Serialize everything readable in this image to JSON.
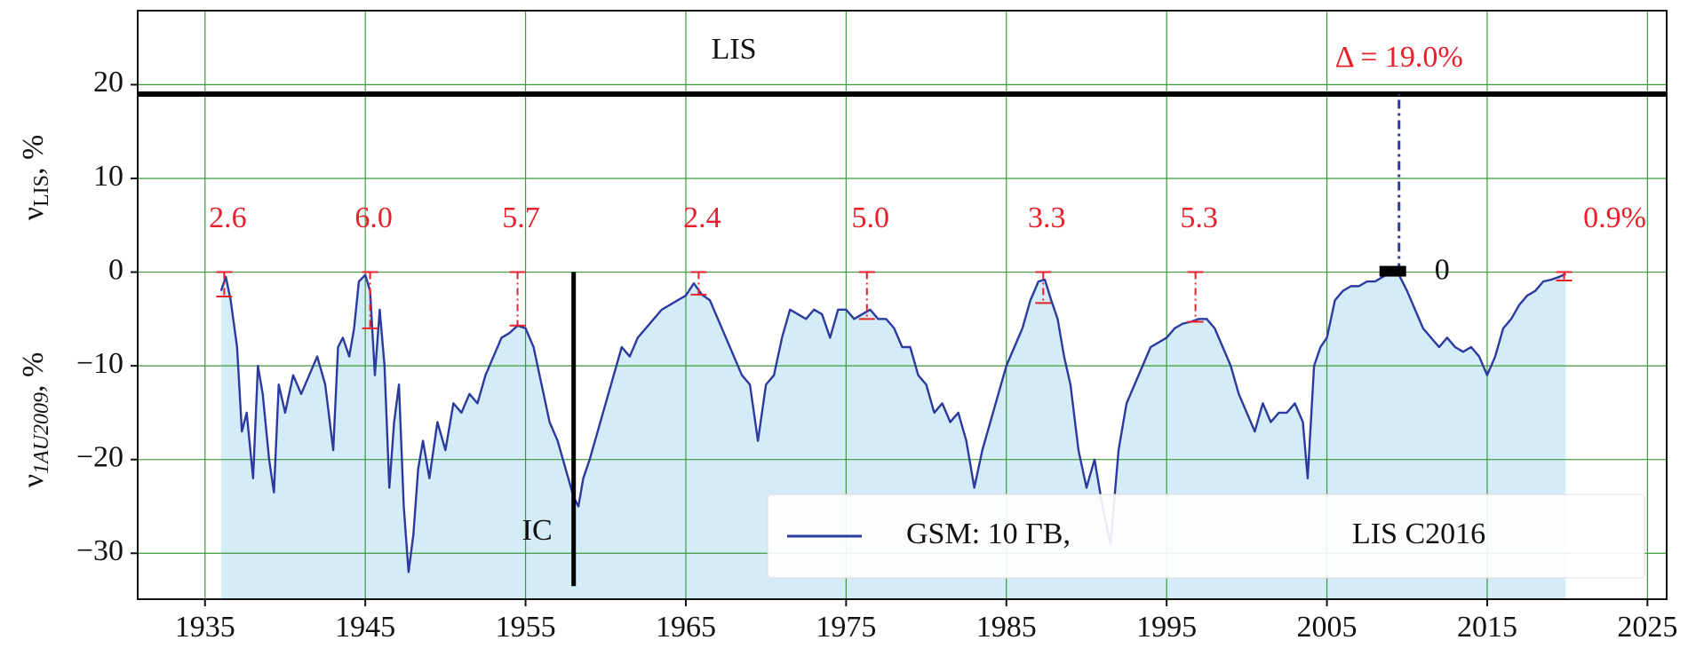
{
  "chart_data": {
    "type": "line",
    "y_label_upper": [
      "ν",
      "LIS",
      ", %"
    ],
    "y_label_lower": [
      "ν",
      "1AU2009",
      ", %"
    ],
    "xlim": [
      1930.8,
      2026.2
    ],
    "ylim": [
      -34.9,
      27.9
    ],
    "xticks": [
      1935,
      1945,
      1955,
      1965,
      1975,
      1985,
      1995,
      2005,
      2015,
      2025
    ],
    "yticks": [
      {
        "value": -30,
        "label": "−30"
      },
      {
        "value": -20,
        "label": "−20"
      },
      {
        "value": -10,
        "label": "−10"
      },
      0,
      10,
      20
    ],
    "grid": true,
    "grid_color": "#3a9a3a",
    "fill_color": "#d3ecf8",
    "legend": "lower right",
    "legend_note": "LIS C2016",
    "series": [
      {
        "name": "GSM: 10 ГВ,",
        "color": "#2b3a9e",
        "x": [
          1936.0,
          1936.3,
          1936.6,
          1937.0,
          1937.3,
          1937.6,
          1938.0,
          1938.3,
          1938.6,
          1939.0,
          1939.3,
          1939.6,
          1940.0,
          1940.5,
          1941.0,
          1941.5,
          1942.0,
          1942.5,
          1943.0,
          1943.3,
          1943.6,
          1944.0,
          1944.3,
          1944.6,
          1945.0,
          1945.3,
          1945.6,
          1945.9,
          1946.2,
          1946.5,
          1946.8,
          1947.1,
          1947.4,
          1947.7,
          1948.0,
          1948.3,
          1948.6,
          1949.0,
          1949.5,
          1950.0,
          1950.5,
          1951.0,
          1951.5,
          1952.0,
          1952.5,
          1953.0,
          1953.5,
          1954.0,
          1954.5,
          1955.0,
          1955.5,
          1956.0,
          1956.5,
          1957.0,
          1957.5,
          1958.0,
          1958.3,
          1958.6,
          1959.0,
          1959.5,
          1960.0,
          1960.5,
          1961.0,
          1961.5,
          1962.0,
          1962.5,
          1963.0,
          1963.5,
          1964.0,
          1964.5,
          1965.0,
          1965.5,
          1966.0,
          1966.5,
          1967.0,
          1967.5,
          1968.0,
          1968.5,
          1969.0,
          1969.5,
          1970.0,
          1970.5,
          1971.0,
          1971.5,
          1972.0,
          1972.5,
          1973.0,
          1973.5,
          1974.0,
          1974.5,
          1975.0,
          1975.5,
          1976.0,
          1976.5,
          1977.0,
          1977.5,
          1978.0,
          1978.5,
          1979.0,
          1979.5,
          1980.0,
          1980.5,
          1981.0,
          1981.5,
          1982.0,
          1982.5,
          1983.0,
          1983.5,
          1984.0,
          1984.5,
          1985.0,
          1985.5,
          1986.0,
          1986.5,
          1987.0,
          1987.4,
          1987.8,
          1988.2,
          1988.6,
          1989.0,
          1989.5,
          1990.0,
          1990.5,
          1991.0,
          1991.5,
          1992.0,
          1992.5,
          1993.0,
          1993.5,
          1994.0,
          1994.5,
          1995.0,
          1995.5,
          1996.0,
          1996.5,
          1997.0,
          1997.5,
          1998.0,
          1998.5,
          1999.0,
          1999.5,
          2000.0,
          2000.5,
          2001.0,
          2001.5,
          2002.0,
          2002.5,
          2003.0,
          2003.5,
          2003.8,
          2004.2,
          2004.6,
          2005.0,
          2005.5,
          2006.0,
          2006.5,
          2007.0,
          2007.5,
          2008.0,
          2008.5,
          2009.0,
          2009.5,
          2010.0,
          2010.5,
          2011.0,
          2011.5,
          2012.0,
          2012.5,
          2013.0,
          2013.5,
          2014.0,
          2014.5,
          2015.0,
          2015.5,
          2016.0,
          2016.5,
          2017.0,
          2017.5,
          2018.0,
          2018.5,
          2019.0,
          2019.5,
          2019.9
        ],
        "values": [
          -2,
          -0.5,
          -3,
          -8,
          -17,
          -15,
          -22,
          -10,
          -13,
          -20,
          -23.5,
          -12,
          -15,
          -11,
          -13,
          -11,
          -9,
          -12,
          -19,
          -8,
          -7,
          -9,
          -6,
          -1,
          -0.3,
          -2,
          -11,
          -4,
          -10,
          -23,
          -16,
          -12,
          -25,
          -32,
          -28,
          -21,
          -18,
          -22,
          -16,
          -19,
          -14,
          -15,
          -13,
          -14,
          -11,
          -9,
          -7,
          -6.5,
          -5.7,
          -6,
          -8,
          -12,
          -16,
          -18,
          -21,
          -24,
          -25,
          -22,
          -20,
          -17,
          -14,
          -11,
          -8,
          -9,
          -7,
          -6,
          -5,
          -4,
          -3.5,
          -3,
          -2.5,
          -1.2,
          -2.4,
          -3,
          -5,
          -7,
          -9,
          -11,
          -12,
          -18,
          -12,
          -11,
          -7,
          -4,
          -4.5,
          -5,
          -4,
          -4.5,
          -7,
          -4,
          -4,
          -5,
          -4.5,
          -4,
          -5,
          -5,
          -6,
          -8,
          -8,
          -11,
          -12,
          -15,
          -14,
          -16,
          -15,
          -18,
          -23,
          -19,
          -16,
          -13,
          -10,
          -8,
          -6,
          -3,
          -1,
          -0.8,
          -3,
          -5,
          -9,
          -12,
          -19,
          -23,
          -20,
          -25,
          -29,
          -19,
          -14,
          -12,
          -10,
          -8,
          -7.5,
          -7,
          -6,
          -5.5,
          -5.3,
          -5,
          -5,
          -6,
          -8,
          -10,
          -13,
          -15,
          -17,
          -14,
          -16,
          -15,
          -15,
          -14,
          -16,
          -22,
          -10,
          -8,
          -7,
          -3,
          -2,
          -1.5,
          -1.5,
          -1,
          -1,
          -0.5,
          0,
          -0.3,
          -2,
          -4,
          -6,
          -7,
          -8,
          -7,
          -8,
          -8.5,
          -8,
          -9,
          -11,
          -9,
          -6,
          -5,
          -3.5,
          -2.5,
          -2,
          -1,
          -0.8,
          -0.5,
          -0.2
        ]
      }
    ],
    "peaks": {
      "color": "#e8202a",
      "x": [
        1936.2,
        1945.3,
        1954.5,
        1965.8,
        1976.3,
        1987.3,
        1996.8,
        2019.8
      ],
      "values": [
        2.6,
        6.0,
        5.7,
        2.4,
        5.0,
        3.3,
        5.3,
        0.9
      ],
      "value_labels": [
        "2.6",
        "6.0",
        "5.7",
        "2.4",
        "5.0",
        "3.3",
        "5.3",
        "0.9%"
      ]
    },
    "lis": {
      "text": "LIS",
      "value": 19,
      "x": 1968,
      "y": 23.5
    },
    "delta": {
      "x": 2009.5,
      "value": 19.0,
      "label": "Δ = 19.0%",
      "zero_label": "0"
    },
    "ic": {
      "text": "IC",
      "x": 1958,
      "y_range": [
        -33.5,
        0
      ]
    }
  }
}
